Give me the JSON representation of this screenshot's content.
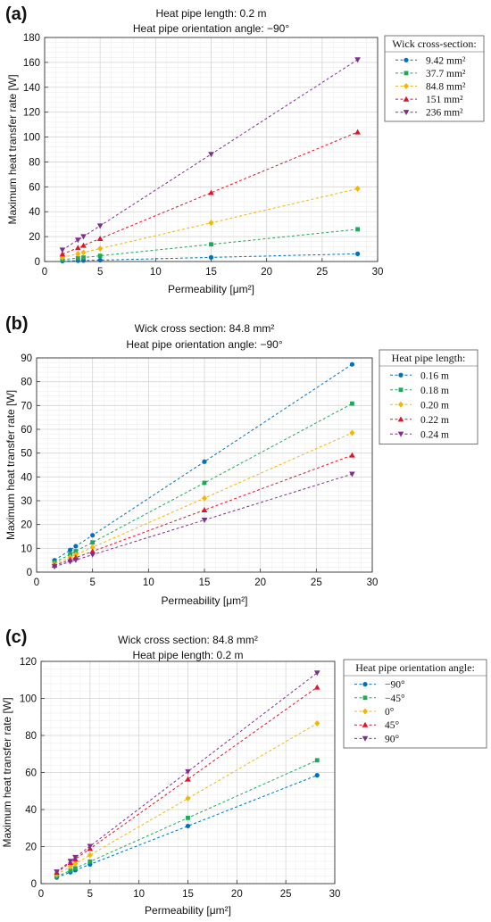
{
  "chart_data": [
    {
      "panel": "(a)",
      "type": "line",
      "title": [
        "Heat pipe length: 0.2 m",
        "Heat pipe orientation angle: −90°"
      ],
      "xlabel": "Permeability [μm²]",
      "ylabel": "Maximum heat transfer rate [W]",
      "xlim": [
        0,
        30
      ],
      "ylim": [
        0,
        180
      ],
      "xticks": [
        0,
        5,
        10,
        15,
        20,
        25,
        30
      ],
      "yticks": [
        0,
        20,
        40,
        60,
        80,
        100,
        120,
        140,
        160,
        180
      ],
      "grid": true,
      "legend_title": "Wick cross-section:",
      "legend_position": "outside-right-top",
      "x": [
        1.6,
        3.0,
        3.5,
        5.0,
        15.0,
        28.2
      ],
      "series": [
        {
          "name": "9.42 mm²",
          "color": "#0072BD",
          "marker": "circle",
          "values": [
            0.4,
            0.7,
            0.8,
            1.1,
            3.3,
            6.2
          ]
        },
        {
          "name": "37.7 mm²",
          "color": "#20A75A",
          "marker": "square",
          "values": [
            1.5,
            2.8,
            3.2,
            4.6,
            13.8,
            25.9
          ]
        },
        {
          "name": "84.8 mm²",
          "color": "#F2B705",
          "marker": "diamond",
          "values": [
            3.3,
            6.2,
            7.3,
            10.4,
            31.1,
            58.5
          ]
        },
        {
          "name": "151 mm²",
          "color": "#E3122A",
          "marker": "triangle-up",
          "values": [
            5.9,
            11.0,
            12.9,
            18.4,
            55.3,
            104.0
          ]
        },
        {
          "name": "236 mm²",
          "color": "#7E2F8E",
          "marker": "triangle-down",
          "values": [
            9.3,
            17.3,
            20.1,
            28.7,
            86.2,
            162.2
          ]
        }
      ]
    },
    {
      "panel": "(b)",
      "type": "line",
      "title": [
        "Wick cross section: 84.8 mm²",
        "Heat pipe orientation angle: −90°"
      ],
      "xlabel": "Permeability [μm²]",
      "ylabel": "Maximum heat transfer rate [W]",
      "xlim": [
        0,
        30
      ],
      "ylim": [
        0,
        90
      ],
      "xticks": [
        0,
        5,
        10,
        15,
        20,
        25,
        30
      ],
      "yticks": [
        0,
        10,
        20,
        30,
        40,
        50,
        60,
        70,
        80,
        90
      ],
      "grid": true,
      "legend_title": "Heat pipe length:",
      "legend_position": "outside-right-top",
      "x": [
        1.6,
        3.0,
        3.5,
        5.0,
        15.0,
        28.2
      ],
      "series": [
        {
          "name": "0.16 m",
          "color": "#0072BD",
          "marker": "circle",
          "values": [
            5.0,
            9.3,
            10.9,
            15.5,
            46.4,
            87.3
          ]
        },
        {
          "name": "0.18 m",
          "color": "#20A75A",
          "marker": "square",
          "values": [
            4.0,
            7.5,
            8.8,
            12.5,
            37.5,
            70.8
          ]
        },
        {
          "name": "0.20 m",
          "color": "#F2B705",
          "marker": "diamond",
          "values": [
            3.3,
            6.2,
            7.3,
            10.4,
            31.1,
            58.5
          ]
        },
        {
          "name": "0.22 m",
          "color": "#E3122A",
          "marker": "triangle-up",
          "values": [
            2.8,
            5.2,
            6.1,
            8.7,
            26.1,
            49.1
          ]
        },
        {
          "name": "0.24 m",
          "color": "#7E2F8E",
          "marker": "triangle-down",
          "values": [
            2.3,
            4.4,
            5.1,
            7.3,
            21.9,
            41.2
          ]
        }
      ]
    },
    {
      "panel": "(c)",
      "type": "line",
      "title": [
        "Wick cross section: 84.8 mm²",
        "Heat pipe length: 0.2 m"
      ],
      "xlabel": "Permeability [μm²]",
      "ylabel": "Maximum heat transfer rate [W]",
      "xlim": [
        0,
        30
      ],
      "ylim": [
        0,
        120
      ],
      "xticks": [
        0,
        5,
        10,
        15,
        20,
        25,
        30
      ],
      "yticks": [
        0,
        20,
        40,
        60,
        80,
        100,
        120
      ],
      "grid": true,
      "legend_title": "Heat pipe orientation angle:",
      "legend_position": "outside-right-top",
      "x": [
        1.6,
        3.0,
        3.5,
        5.0,
        15.0,
        28.2
      ],
      "series": [
        {
          "name": "−90°",
          "color": "#0072BD",
          "marker": "circle",
          "values": [
            3.3,
            6.2,
            7.3,
            10.4,
            31.1,
            58.5
          ]
        },
        {
          "name": "−45°",
          "color": "#20A75A",
          "marker": "square",
          "values": [
            3.8,
            7.1,
            8.3,
            11.9,
            35.5,
            66.6
          ]
        },
        {
          "name": "0°",
          "color": "#F2B705",
          "marker": "diamond",
          "values": [
            4.9,
            9.2,
            10.8,
            15.4,
            46.0,
            86.5
          ]
        },
        {
          "name": "45°",
          "color": "#E3122A",
          "marker": "triangle-up",
          "values": [
            6.0,
            11.3,
            13.2,
            18.9,
            56.4,
            106.0
          ]
        },
        {
          "name": "90°",
          "color": "#7E2F8E",
          "marker": "triangle-down",
          "values": [
            6.4,
            12.1,
            14.2,
            20.2,
            60.5,
            113.8
          ]
        }
      ]
    }
  ]
}
